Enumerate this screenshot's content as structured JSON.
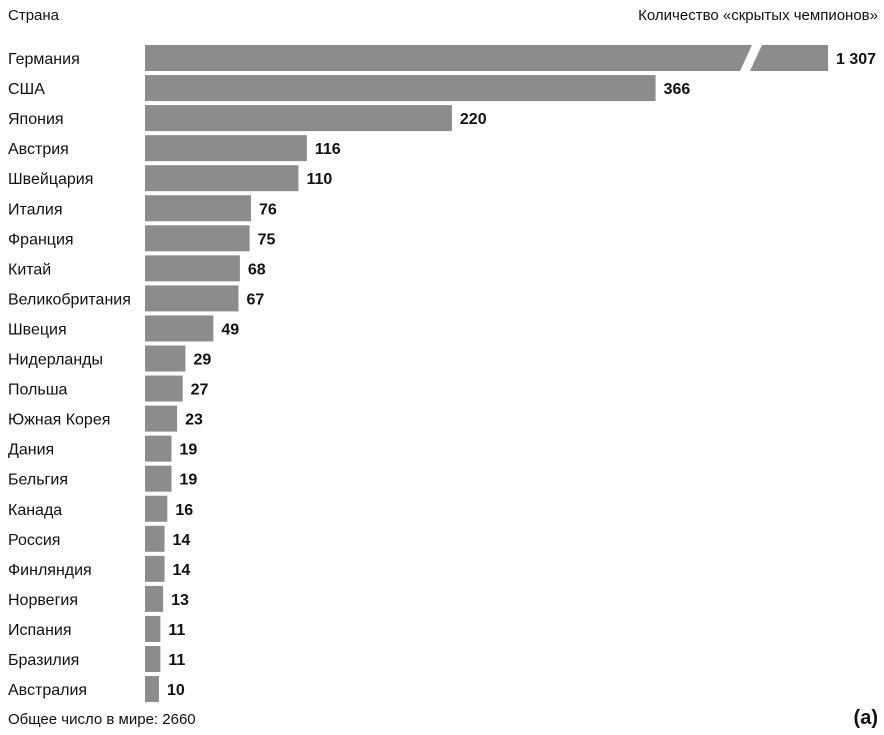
{
  "chart_data": {
    "type": "bar",
    "orientation": "horizontal",
    "header_left": "Страна",
    "header_right": "Количество «скрытых чемпионов»",
    "categories": [
      "Германия",
      "США",
      "Япония",
      "Австрия",
      "Швейцария",
      "Италия",
      "Франция",
      "Китай",
      "Великобритания",
      "Швеция",
      "Нидерланды",
      "Польша",
      "Южная Корея",
      "Дания",
      "Бельгия",
      "Канада",
      "Россия",
      "Финляндия",
      "Норвегия",
      "Испания",
      "Бразилия",
      "Австралия"
    ],
    "values": [
      1307,
      366,
      220,
      116,
      110,
      76,
      75,
      68,
      67,
      49,
      29,
      27,
      23,
      19,
      19,
      16,
      14,
      14,
      13,
      11,
      11,
      10
    ],
    "value_labels": [
      "1 307",
      "366",
      "220",
      "116",
      "110",
      "76",
      "75",
      "68",
      "67",
      "49",
      "29",
      "27",
      "23",
      "19",
      "19",
      "16",
      "14",
      "14",
      "13",
      "11",
      "11",
      "10"
    ],
    "axis_break": true,
    "footnote": "Общее число в мире: 2660",
    "panel_label": "(a)",
    "colors": {
      "bar": "#8c8c8c",
      "text": "#111111",
      "background": "#ffffff"
    }
  }
}
